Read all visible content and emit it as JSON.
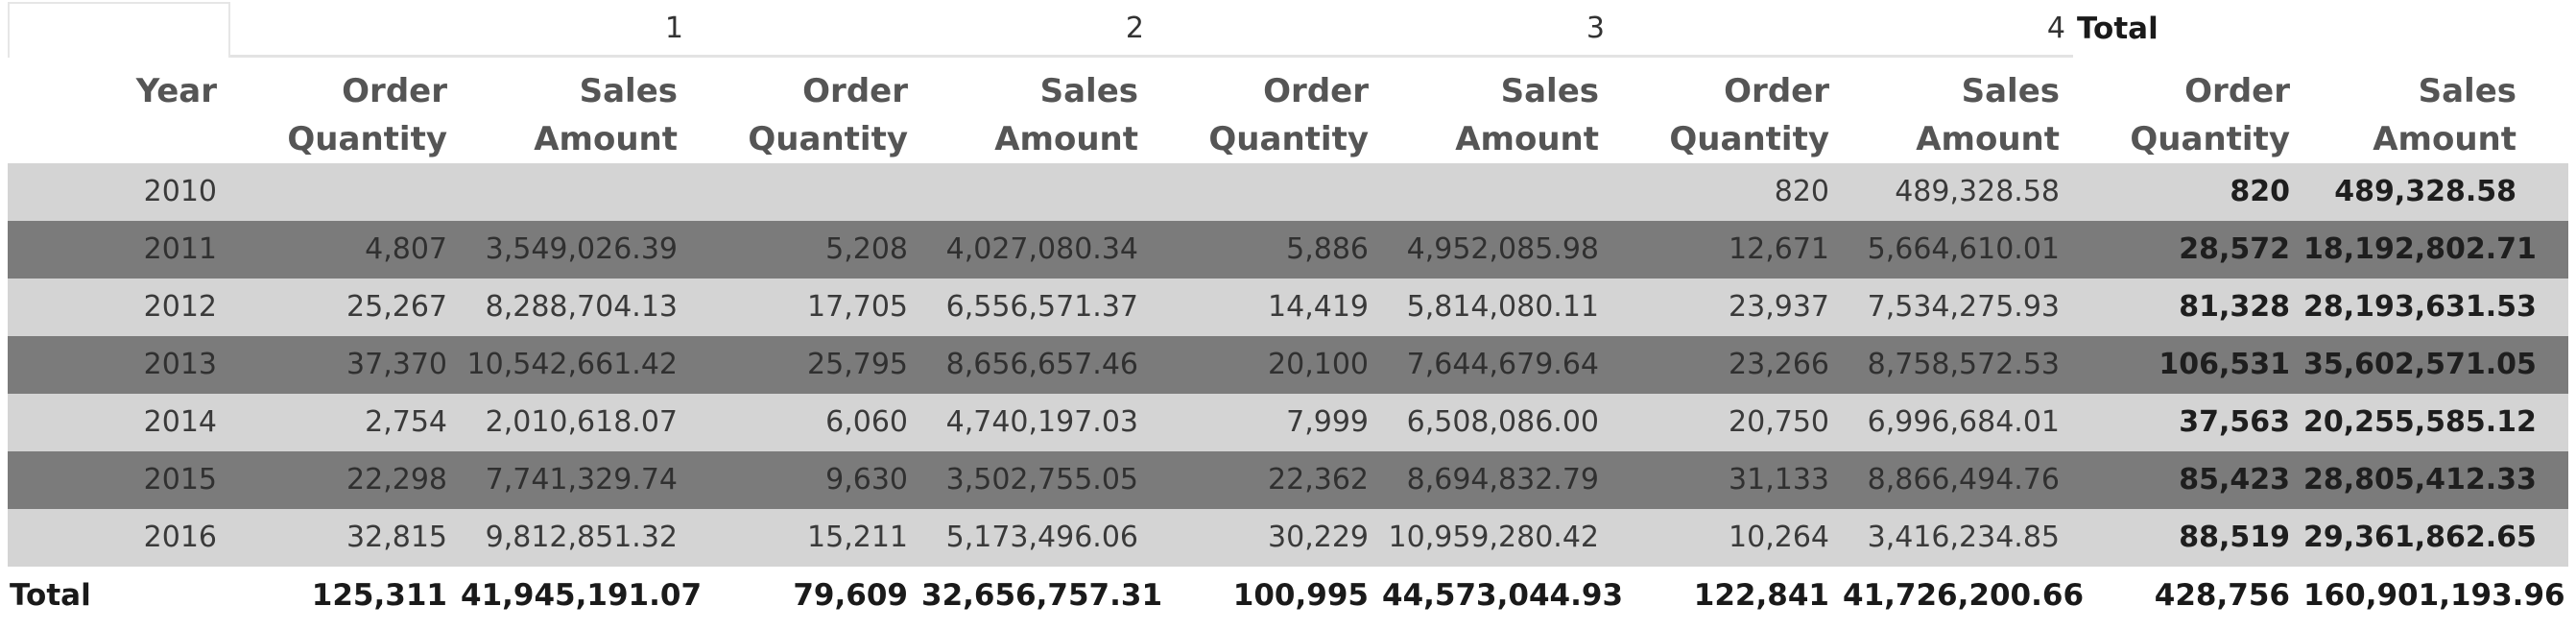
{
  "matrix": {
    "groups": [
      "1",
      "2",
      "3",
      "4"
    ],
    "total_label": "Total",
    "row_header": "Year",
    "col_headers": {
      "order_quantity": "Order Quantity",
      "sales_amount": "Sales Amount"
    },
    "rows": [
      {
        "year": "2010",
        "values": [
          "",
          "",
          "",
          "",
          "",
          "",
          "820",
          "489,328.58"
        ],
        "total": [
          "820",
          "489,328.58"
        ]
      },
      {
        "year": "2011",
        "values": [
          "4,807",
          "3,549,026.39",
          "5,208",
          "4,027,080.34",
          "5,886",
          "4,952,085.98",
          "12,671",
          "5,664,610.01"
        ],
        "total": [
          "28,572",
          "18,192,802.71"
        ]
      },
      {
        "year": "2012",
        "values": [
          "25,267",
          "8,288,704.13",
          "17,705",
          "6,556,571.37",
          "14,419",
          "5,814,080.11",
          "23,937",
          "7,534,275.93"
        ],
        "total": [
          "81,328",
          "28,193,631.53"
        ]
      },
      {
        "year": "2013",
        "values": [
          "37,370",
          "10,542,661.42",
          "25,795",
          "8,656,657.46",
          "20,100",
          "7,644,679.64",
          "23,266",
          "8,758,572.53"
        ],
        "total": [
          "106,531",
          "35,602,571.05"
        ]
      },
      {
        "year": "2014",
        "values": [
          "2,754",
          "2,010,618.07",
          "6,060",
          "4,740,197.03",
          "7,999",
          "6,508,086.00",
          "20,750",
          "6,996,684.01"
        ],
        "total": [
          "37,563",
          "20,255,585.12"
        ]
      },
      {
        "year": "2015",
        "values": [
          "22,298",
          "7,741,329.74",
          "9,630",
          "3,502,755.05",
          "22,362",
          "8,694,832.79",
          "31,133",
          "8,866,494.76"
        ],
        "total": [
          "85,423",
          "28,805,412.33"
        ]
      },
      {
        "year": "2016",
        "values": [
          "32,815",
          "9,812,851.32",
          "15,211",
          "5,173,496.06",
          "30,229",
          "10,959,280.42",
          "10,264",
          "3,416,234.85"
        ],
        "total": [
          "88,519",
          "29,361,862.65"
        ]
      }
    ],
    "grand_total": {
      "label": "Total",
      "values": [
        "125,311",
        "41,945,191.07",
        "79,609",
        "32,656,757.31",
        "100,995",
        "44,573,044.93",
        "122,841",
        "41,726,200.66"
      ],
      "total": [
        "428,756",
        "160,901,193.96"
      ]
    },
    "colors": {
      "band_light": "#d4d4d4",
      "band_dark": "#7b7b7b",
      "header_text": "#555555"
    }
  }
}
